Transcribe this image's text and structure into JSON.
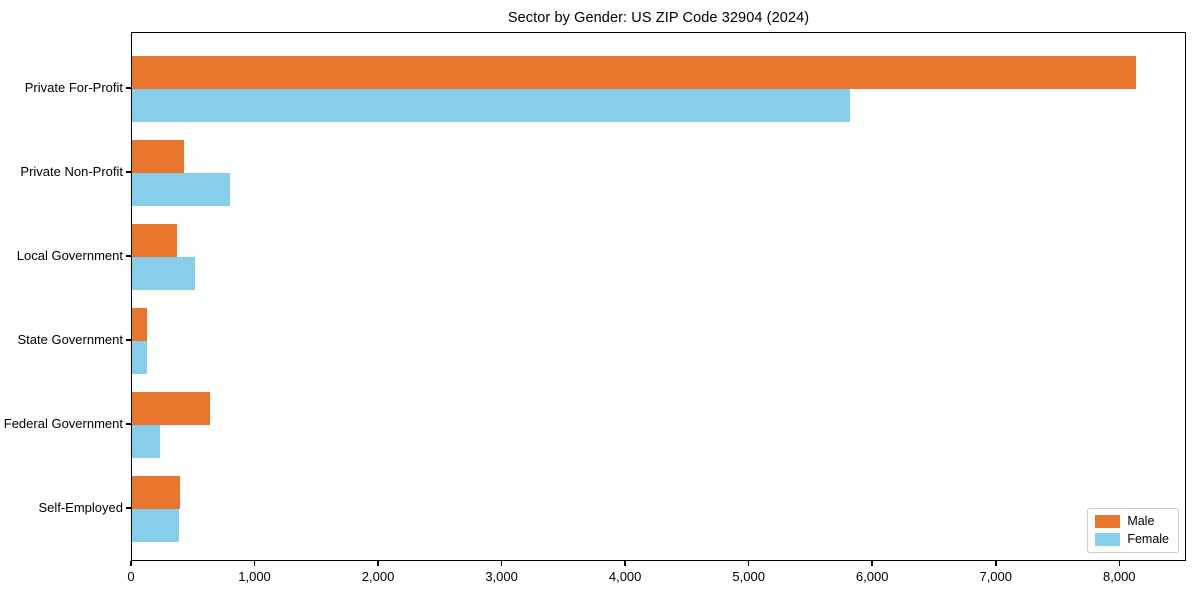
{
  "page": {
    "background": "#ffffff"
  },
  "chart_data": {
    "type": "bar",
    "orientation": "horizontal",
    "title": "Sector by Gender: US ZIP Code 32904 (2024)",
    "categories": [
      "Private For-Profit",
      "Private Non-Profit",
      "Local Government",
      "State Government",
      "Federal Government",
      "Self-Employed"
    ],
    "series": [
      {
        "name": "Male",
        "color": "#E8762D",
        "values": [
          8130,
          420,
          365,
          120,
          630,
          390
        ]
      },
      {
        "name": "Female",
        "color": "#87CEEB",
        "values": [
          5810,
          795,
          510,
          125,
          230,
          380
        ]
      }
    ],
    "xlabel": "",
    "ylabel": "",
    "xlim": [
      0,
      8540
    ],
    "xticks": [
      0,
      1000,
      2000,
      3000,
      4000,
      5000,
      6000,
      7000,
      8000
    ],
    "xtick_labels": [
      "0",
      "1,000",
      "2,000",
      "3,000",
      "4,000",
      "5,000",
      "6,000",
      "7,000",
      "8,000"
    ],
    "grid": false,
    "legend": {
      "position": "lower-right",
      "items": [
        "Male",
        "Female"
      ]
    },
    "axis_color": "#000000",
    "text_color": "#000000"
  }
}
